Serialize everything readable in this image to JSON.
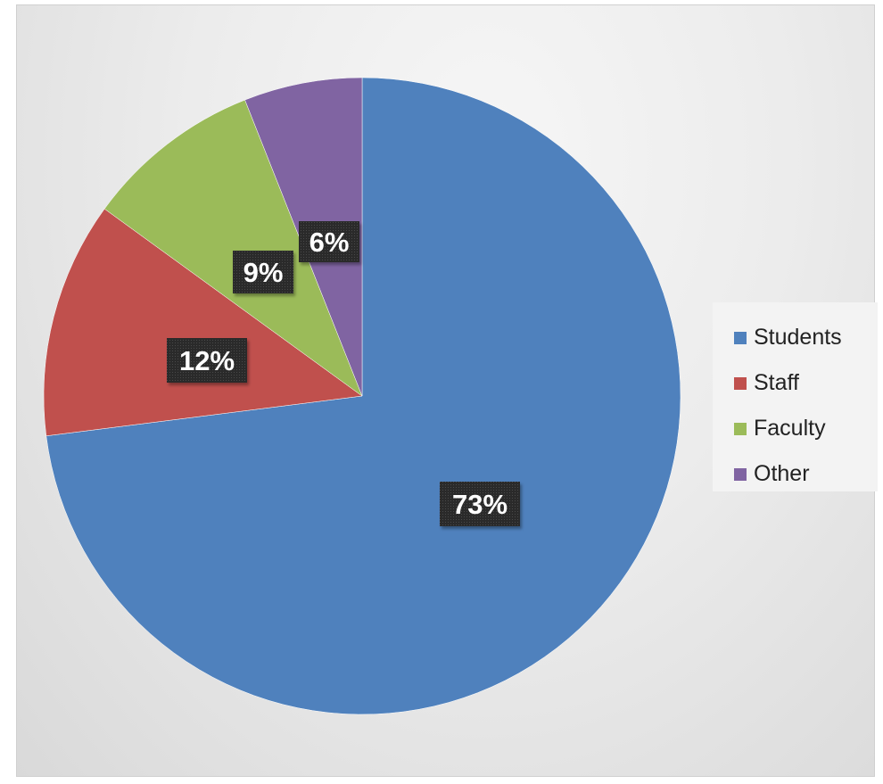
{
  "chart_data": {
    "type": "pie",
    "categories": [
      "Students",
      "Staff",
      "Faculty",
      "Other"
    ],
    "values": [
      73,
      12,
      9,
      6
    ],
    "data_labels": [
      "73%",
      "12%",
      "9%",
      "6%"
    ],
    "colors": [
      "#4f81bd",
      "#c0504d",
      "#9bbb59",
      "#8064a2"
    ],
    "title": "",
    "legend_position": "right",
    "start_angle": "12 o'clock, clockwise"
  }
}
